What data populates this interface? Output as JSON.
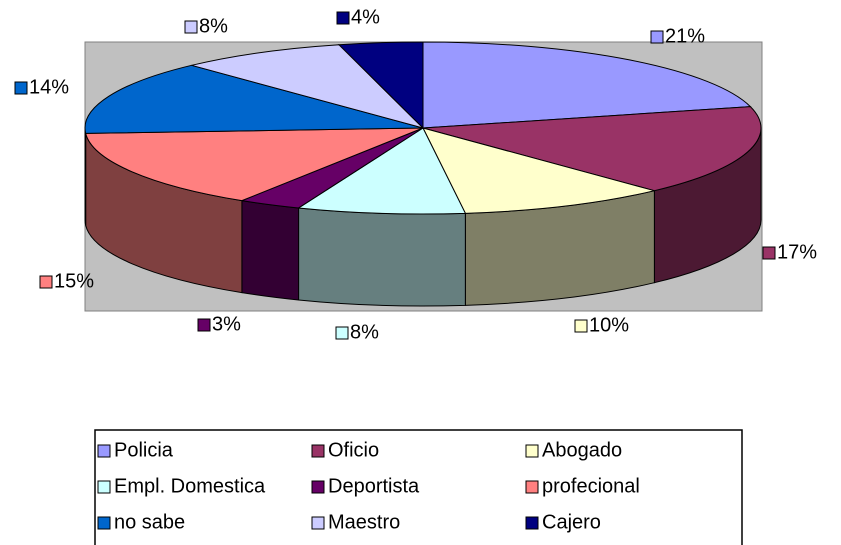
{
  "chart_data": {
    "type": "pie3d",
    "categories": [
      "Policia",
      "Oficio",
      "Abogado",
      "Empl. Domestica",
      "Deportista",
      "profecional",
      "no sabe",
      "Maestro",
      "Cajero"
    ],
    "values": [
      21,
      17,
      10,
      8,
      3,
      15,
      14,
      8,
      4
    ],
    "value_labels": [
      "21%",
      "17%",
      "10%",
      "8%",
      "3%",
      "15%",
      "14%",
      "8%",
      "4%"
    ],
    "colors": [
      "#9999ff",
      "#993366",
      "#ffffcc",
      "#ccffff",
      "#660066",
      "#ff8080",
      "#0066cc",
      "#ccccff",
      "#000080"
    ],
    "legend": "bottom"
  }
}
